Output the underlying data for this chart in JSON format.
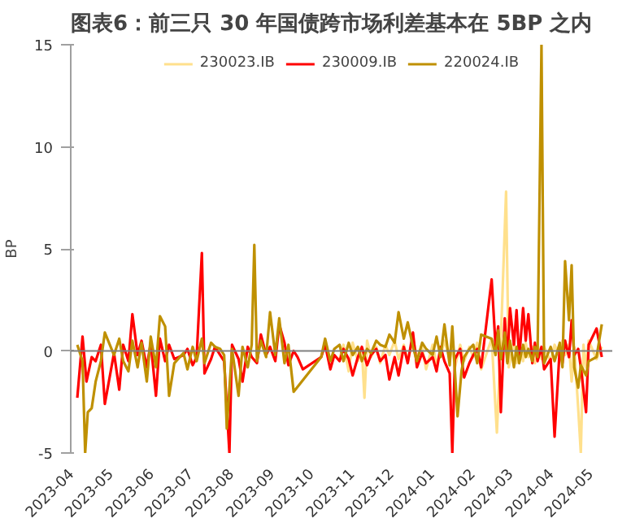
{
  "chart_data": {
    "type": "line",
    "title": "图表6：前三只 30 年国债跨市场利差基本在 5BP 之内",
    "ylabel": "BP",
    "xlim": [
      "2023-04-01",
      "2024-05-18"
    ],
    "xticks": [
      "2023-04",
      "2023-05",
      "2023-06",
      "2023-07",
      "2023-08",
      "2023-09",
      "2023-10",
      "2023-11",
      "2023-12",
      "2024-01",
      "2024-02",
      "2024-03",
      "2024-04",
      "2024-05"
    ],
    "ylim": [
      -5,
      15
    ],
    "yticks": [
      -5,
      0,
      5,
      10,
      15
    ],
    "grid": false,
    "legend": "top",
    "line_style": "solid",
    "marker": "none",
    "ref_lines": [
      {
        "axis": "y",
        "value": 0,
        "label": null,
        "color": "#808080"
      }
    ],
    "series": [
      {
        "name": "230023.IB",
        "color": "#ffe08c",
        "x": [
          "2023-10-23",
          "2023-10-26",
          "2023-10-30",
          "2023-11-02",
          "2023-11-06",
          "2023-11-09",
          "2023-11-11",
          "2023-11-13",
          "2023-11-16",
          "2023-11-20",
          "2023-11-23",
          "2023-11-27",
          "2023-11-30",
          "2023-12-04",
          "2023-12-07",
          "2023-12-11",
          "2023-12-14",
          "2023-12-18",
          "2023-12-21",
          "2023-12-25",
          "2023-12-28",
          "2024-01-02",
          "2024-01-05",
          "2024-01-08",
          "2024-01-11",
          "2024-01-15",
          "2024-01-17",
          "2024-01-19",
          "2024-01-23",
          "2024-01-26",
          "2024-01-30",
          "2024-02-02",
          "2024-02-05",
          "2024-02-08",
          "2024-02-16",
          "2024-02-20",
          "2024-02-23",
          "2024-02-27",
          "2024-02-29",
          "2024-03-04",
          "2024-03-06",
          "2024-03-08",
          "2024-03-11",
          "2024-03-13",
          "2024-03-15",
          "2024-03-18",
          "2024-03-20",
          "2024-03-22",
          "2024-03-25",
          "2024-03-27",
          "2024-04-01",
          "2024-04-04",
          "2024-04-08",
          "2024-04-10",
          "2024-04-12",
          "2024-04-15",
          "2024-04-17",
          "2024-04-19",
          "2024-04-22",
          "2024-04-24",
          "2024-04-26",
          "2024-04-28",
          "2024-04-30",
          "2024-05-06",
          "2024-05-10"
        ],
        "values": [
          -0.4,
          0.3,
          -1.0,
          0.4,
          -0.5,
          0.1,
          -2.3,
          0.5,
          -0.3,
          0.2,
          -0.6,
          0.3,
          -0.2,
          0.5,
          -0.4,
          0.3,
          -0.5,
          0.6,
          -0.3,
          0.2,
          -0.9,
          0.3,
          -0.6,
          -0.2,
          0.5,
          -0.4,
          0.2,
          -0.8,
          0.3,
          -0.5,
          0.2,
          -0.3,
          0.4,
          -0.9,
          0.6,
          -4.0,
          0.5,
          7.8,
          -0.8,
          0.5,
          -0.6,
          0.3,
          -0.5,
          0.4,
          -0.3,
          0.2,
          -0.6,
          0.3,
          -0.4,
          0.2,
          -0.5,
          0.3,
          -0.3,
          0.5,
          -0.2,
          0.3,
          -1.5,
          0.2,
          -2.8,
          -5.0,
          0.3,
          -0.8,
          0.5,
          -0.4,
          0.2
        ]
      },
      {
        "name": "230009.IB",
        "color": "#ff0000",
        "x": [
          "2023-04-06",
          "2023-04-10",
          "2023-04-13",
          "2023-04-17",
          "2023-04-20",
          "2023-04-24",
          "2023-04-27",
          "2023-05-04",
          "2023-05-08",
          "2023-05-11",
          "2023-05-15",
          "2023-05-18",
          "2023-05-22",
          "2023-05-25",
          "2023-05-29",
          "2023-06-01",
          "2023-06-05",
          "2023-06-08",
          "2023-06-12",
          "2023-06-15",
          "2023-06-19",
          "2023-06-26",
          "2023-06-29",
          "2023-07-03",
          "2023-07-06",
          "2023-07-10",
          "2023-07-12",
          "2023-07-17",
          "2023-07-20",
          "2023-07-24",
          "2023-07-27",
          "2023-07-31",
          "2023-08-02",
          "2023-08-07",
          "2023-08-10",
          "2023-08-14",
          "2023-08-17",
          "2023-08-21",
          "2023-08-24",
          "2023-08-28",
          "2023-08-31",
          "2023-09-04",
          "2023-09-07",
          "2023-09-11",
          "2023-09-14",
          "2023-09-18",
          "2023-09-21",
          "2023-09-25",
          "2023-10-09",
          "2023-10-12",
          "2023-10-16",
          "2023-10-19",
          "2023-10-23",
          "2023-10-26",
          "2023-10-30",
          "2023-11-02",
          "2023-11-06",
          "2023-11-09",
          "2023-11-13",
          "2023-11-16",
          "2023-11-20",
          "2023-11-23",
          "2023-11-27",
          "2023-11-30",
          "2023-12-04",
          "2023-12-07",
          "2023-12-11",
          "2023-12-14",
          "2023-12-18",
          "2023-12-21",
          "2023-12-25",
          "2023-12-28",
          "2024-01-02",
          "2024-01-05",
          "2024-01-08",
          "2024-01-11",
          "2024-01-15",
          "2024-01-17",
          "2024-01-19",
          "2024-01-23",
          "2024-01-26",
          "2024-01-30",
          "2024-02-02",
          "2024-02-05",
          "2024-02-08",
          "2024-02-16",
          "2024-02-19",
          "2024-02-21",
          "2024-02-23",
          "2024-02-26",
          "2024-02-28",
          "2024-03-01",
          "2024-03-04",
          "2024-03-06",
          "2024-03-08",
          "2024-03-11",
          "2024-03-13",
          "2024-03-15",
          "2024-03-18",
          "2024-03-20",
          "2024-03-22",
          "2024-03-25",
          "2024-03-27",
          "2024-04-01",
          "2024-04-04",
          "2024-04-08",
          "2024-04-10",
          "2024-04-12",
          "2024-04-15",
          "2024-04-17",
          "2024-04-19",
          "2024-04-22",
          "2024-04-24",
          "2024-04-28",
          "2024-04-30",
          "2024-05-06",
          "2024-05-10"
        ],
        "values": [
          -2.3,
          0.7,
          -1.5,
          -0.3,
          -0.5,
          0.3,
          -2.6,
          -0.1,
          -1.9,
          0.3,
          -0.5,
          1.8,
          -0.2,
          0.5,
          -0.8,
          0.4,
          -2.2,
          0.6,
          -0.5,
          0.3,
          -0.4,
          -0.2,
          0.1,
          -0.7,
          -0.3,
          4.8,
          -1.1,
          -0.4,
          0.2,
          -0.2,
          -0.5,
          -5.0,
          0.3,
          -0.4,
          -1.5,
          0.2,
          -0.3,
          -0.6,
          0.8,
          -0.2,
          0.2,
          -0.5,
          1.3,
          0.4,
          -0.7,
          0.0,
          -0.3,
          -0.9,
          -0.3,
          0.3,
          -0.9,
          -0.2,
          -0.5,
          0.1,
          -0.4,
          -1.2,
          -0.3,
          0.2,
          -0.7,
          -0.2,
          0.1,
          -0.5,
          -0.2,
          -1.4,
          -0.3,
          -1.2,
          0.2,
          -0.6,
          0.9,
          -0.8,
          -0.1,
          -0.6,
          -0.3,
          -1.0,
          0.2,
          -0.5,
          -1.1,
          -5.0,
          -0.4,
          0.1,
          -1.3,
          -0.6,
          -0.2,
          0.1,
          -0.8,
          3.5,
          0.2,
          1.2,
          -3.0,
          1.6,
          -0.5,
          2.1,
          0.3,
          2.0,
          -0.4,
          2.1,
          0.5,
          1.8,
          -0.6,
          0.4,
          -0.5,
          0.2,
          -0.9,
          -0.4,
          -4.2,
          0.2,
          -0.6,
          0.5,
          -0.3,
          1.5,
          -0.2,
          0.1,
          -0.8,
          -3.0,
          0.3,
          1.1,
          -0.3
        ]
      },
      {
        "name": "220024.IB",
        "color": "#bf9000",
        "x": [
          "2023-04-06",
          "2023-04-10",
          "2023-04-12",
          "2023-04-14",
          "2023-04-17",
          "2023-04-20",
          "2023-04-24",
          "2023-04-27",
          "2023-05-04",
          "2023-05-08",
          "2023-05-11",
          "2023-05-15",
          "2023-05-18",
          "2023-05-22",
          "2023-05-25",
          "2023-05-29",
          "2023-06-01",
          "2023-06-05",
          "2023-06-08",
          "2023-06-12",
          "2023-06-15",
          "2023-06-19",
          "2023-06-26",
          "2023-06-29",
          "2023-07-03",
          "2023-07-06",
          "2023-07-10",
          "2023-07-12",
          "2023-07-17",
          "2023-07-20",
          "2023-07-24",
          "2023-07-27",
          "2023-07-29",
          "2023-08-02",
          "2023-08-07",
          "2023-08-10",
          "2023-08-14",
          "2023-08-17",
          "2023-08-19",
          "2023-08-21",
          "2023-08-24",
          "2023-08-28",
          "2023-08-31",
          "2023-09-04",
          "2023-09-07",
          "2023-09-11",
          "2023-09-14",
          "2023-09-18",
          "2023-10-09",
          "2023-10-12",
          "2023-10-16",
          "2023-10-19",
          "2023-10-23",
          "2023-10-26",
          "2023-10-30",
          "2023-11-02",
          "2023-11-06",
          "2023-11-09",
          "2023-11-13",
          "2023-11-16",
          "2023-11-20",
          "2023-11-23",
          "2023-11-27",
          "2023-11-30",
          "2023-12-04",
          "2023-12-07",
          "2023-12-11",
          "2023-12-14",
          "2023-12-18",
          "2023-12-21",
          "2023-12-25",
          "2023-12-28",
          "2024-01-02",
          "2024-01-05",
          "2024-01-08",
          "2024-01-11",
          "2024-01-15",
          "2024-01-17",
          "2024-01-21",
          "2024-01-24",
          "2024-01-26",
          "2024-01-30",
          "2024-02-02",
          "2024-02-05",
          "2024-02-08",
          "2024-02-16",
          "2024-02-19",
          "2024-02-21",
          "2024-02-23",
          "2024-02-26",
          "2024-02-28",
          "2024-03-01",
          "2024-03-04",
          "2024-03-06",
          "2024-03-08",
          "2024-03-11",
          "2024-03-13",
          "2024-03-15",
          "2024-03-18",
          "2024-03-20",
          "2024-03-22",
          "2024-03-25",
          "2024-03-27",
          "2024-04-01",
          "2024-04-04",
          "2024-04-08",
          "2024-04-10",
          "2024-04-12",
          "2024-04-15",
          "2024-04-17",
          "2024-04-19",
          "2024-04-22",
          "2024-04-24",
          "2024-04-28",
          "2024-04-30",
          "2024-05-06",
          "2024-05-10"
        ],
        "values": [
          0.3,
          -0.5,
          -5.0,
          -3.0,
          -2.8,
          -1.5,
          -0.5,
          0.9,
          -0.2,
          0.6,
          -0.5,
          -1.0,
          0.5,
          -0.8,
          0.4,
          -1.5,
          0.7,
          -0.8,
          1.7,
          1.2,
          -2.2,
          -0.6,
          -0.1,
          -0.9,
          0.2,
          -0.5,
          0.6,
          -0.6,
          0.4,
          0.2,
          0.1,
          -0.2,
          -3.8,
          0.1,
          -2.2,
          0.2,
          -0.8,
          0.3,
          5.2,
          -0.5,
          0.5,
          -0.3,
          1.9,
          -0.2,
          1.6,
          -0.6,
          0.3,
          -2.0,
          -0.3,
          0.6,
          -0.5,
          0.1,
          0.3,
          -0.5,
          0.4,
          -0.2,
          0.2,
          -0.5,
          0.1,
          -0.1,
          0.5,
          0.3,
          0.2,
          0.8,
          0.4,
          1.9,
          0.6,
          1.4,
          0.2,
          -0.5,
          0.4,
          0.1,
          -0.2,
          0.7,
          -0.3,
          1.3,
          -0.7,
          1.2,
          -3.2,
          -1.0,
          -0.3,
          0.1,
          0.3,
          -0.6,
          0.8,
          0.6,
          -0.2,
          1.0,
          -0.4,
          0.9,
          -0.6,
          0.5,
          -0.8,
          0.2,
          -0.6,
          0.3,
          -0.3,
          0.1,
          -0.5,
          0.2,
          -0.3,
          15.0,
          -0.6,
          0.2,
          -0.5,
          0.4,
          -0.8,
          4.4,
          1.5,
          4.2,
          -0.8,
          -1.8,
          -0.7,
          -1.2,
          -0.5,
          -0.3,
          1.3
        ]
      }
    ]
  }
}
